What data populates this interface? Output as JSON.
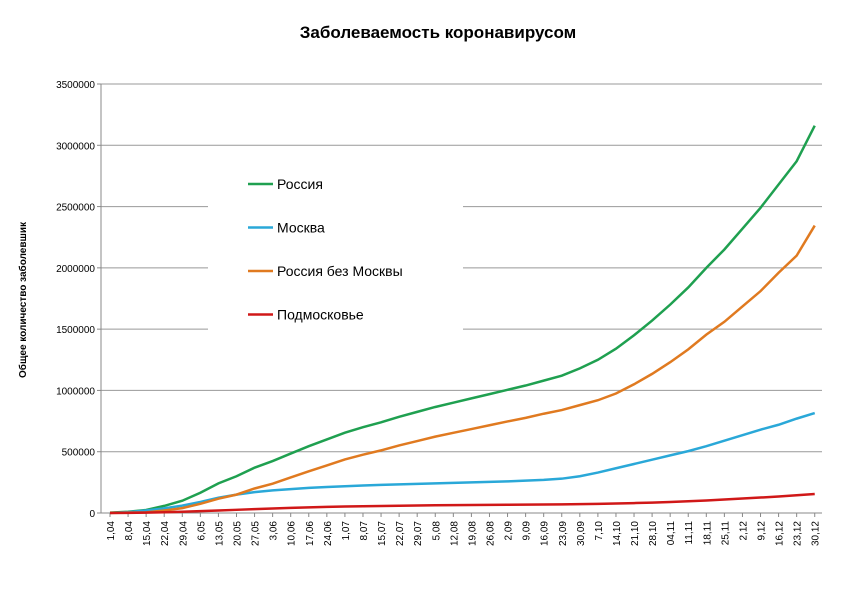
{
  "chart_data": {
    "type": "line",
    "title": "Заболеваемость коронавирусом",
    "y_label": "Общее количество заболевшик",
    "categories": [
      "1,04",
      "8,04",
      "15,04",
      "22,04",
      "29,04",
      "6,05",
      "13,05",
      "20,05",
      "27,05",
      "3,06",
      "10,06",
      "17,06",
      "24,06",
      "1,07",
      "8,07",
      "15,07",
      "22,07",
      "29,07",
      "5,08",
      "12,08",
      "19,08",
      "26,08",
      "2,09",
      "9,09",
      "16,09",
      "23,09",
      "30,09",
      "7,10",
      "14,10",
      "21,10",
      "28,10",
      "04,11",
      "11,11",
      "18,11",
      "25,11",
      "2,12",
      "9,12",
      "16,12",
      "23,12",
      "30,12"
    ],
    "series": [
      {
        "name": "Россия",
        "color": "#1fa050",
        "values": [
          3000,
          10000,
          25000,
          58000,
          100000,
          165000,
          242000,
          300000,
          370000,
          424000,
          485000,
          545000,
          600000,
          655000,
          700000,
          740000,
          785000,
          825000,
          865000,
          900000,
          935000,
          970000,
          1005000,
          1040000,
          1080000,
          1120000,
          1180000,
          1250000,
          1340000,
          1450000,
          1570000,
          1700000,
          1840000,
          2000000,
          2150000,
          2320000,
          2490000,
          2680000,
          2870000,
          3160000
        ]
      },
      {
        "name": "Москва",
        "color": "#2aa8d8",
        "values": [
          1500,
          7000,
          20000,
          38000,
          60000,
          90000,
          125000,
          150000,
          170000,
          185000,
          195000,
          205000,
          212000,
          218000,
          224000,
          229000,
          234000,
          238000,
          242000,
          246000,
          250000,
          254000,
          258000,
          264000,
          270000,
          280000,
          300000,
          330000,
          365000,
          400000,
          435000,
          470000,
          505000,
          545000,
          590000,
          635000,
          680000,
          720000,
          770000,
          815000
        ]
      },
      {
        "name": "Россия без Москвы",
        "color": "#e07a20",
        "values": [
          1500,
          3000,
          5000,
          20000,
          40000,
          75000,
          117000,
          150000,
          200000,
          239000,
          290000,
          340000,
          388000,
          437000,
          476000,
          511000,
          551000,
          587000,
          623000,
          654000,
          685000,
          716000,
          747000,
          776000,
          810000,
          840000,
          880000,
          920000,
          975000,
          1050000,
          1135000,
          1230000,
          1335000,
          1455000,
          1560000,
          1685000,
          1810000,
          1960000,
          2100000,
          2345000
        ]
      },
      {
        "name": "Подмосковье",
        "color": "#d01818",
        "values": [
          500,
          1500,
          3000,
          6000,
          10000,
          15000,
          20000,
          26000,
          32000,
          37000,
          42000,
          46000,
          50000,
          53000,
          55000,
          57000,
          59000,
          61000,
          63000,
          64000,
          65000,
          66000,
          67000,
          68000,
          69000,
          70000,
          72000,
          74000,
          77000,
          81000,
          85000,
          90000,
          96000,
          102000,
          110000,
          118000,
          126000,
          135000,
          145000,
          155000
        ]
      }
    ],
    "ylim": [
      0,
      3500000
    ],
    "yticks": [
      0,
      500000,
      1000000,
      1500000,
      2000000,
      2500000,
      3000000,
      3500000
    ],
    "grid": true
  }
}
